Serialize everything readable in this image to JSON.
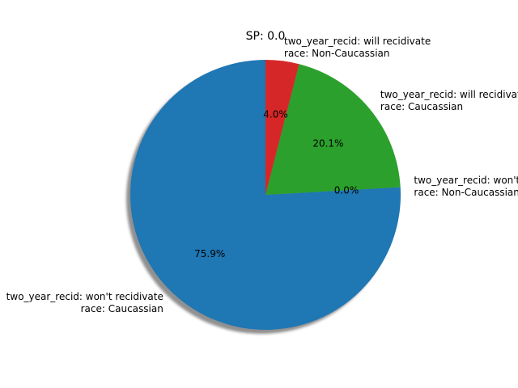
{
  "chart_data": {
    "type": "pie",
    "title": "SP: 0.0",
    "shadow": true,
    "slices": [
      {
        "label_lines": [
          "two_year_recid: won't recidivate",
          "race: Caucassian"
        ],
        "value": 75.9,
        "pct_label": "75.9%",
        "color": "#1f77b4"
      },
      {
        "label_lines": [
          "two_year_recid: won't recidivate",
          "race: Non-Caucassian"
        ],
        "value": 0.0,
        "pct_label": "0.0%",
        "color": "#ff7f0e"
      },
      {
        "label_lines": [
          "two_year_recid: will recidivate",
          "race: Caucassian"
        ],
        "value": 20.1,
        "pct_label": "20.1%",
        "color": "#2ca02c"
      },
      {
        "label_lines": [
          "two_year_recid: will recidivate",
          "race: Non-Caucassian"
        ],
        "value": 4.0,
        "pct_label": "4.0%",
        "color": "#d62728"
      }
    ]
  }
}
